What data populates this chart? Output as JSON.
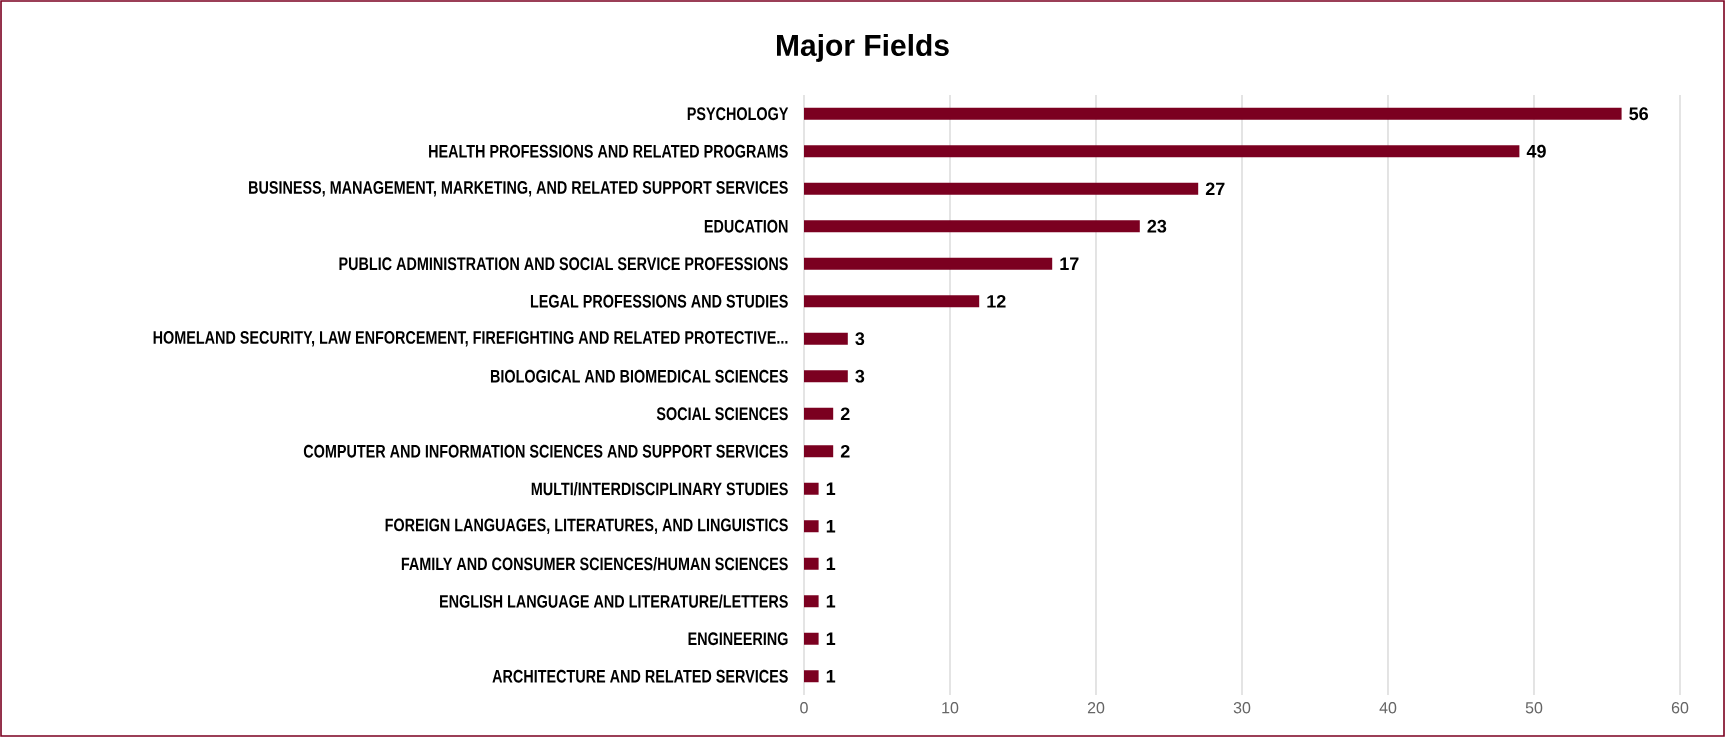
{
  "chart_data": {
    "type": "bar",
    "orientation": "horizontal",
    "title": "Major Fields",
    "categories": [
      "PSYCHOLOGY",
      "HEALTH PROFESSIONS AND RELATED PROGRAMS",
      "BUSINESS, MANAGEMENT, MARKETING, AND RELATED SUPPORT SERVICES",
      "EDUCATION",
      "PUBLIC ADMINISTRATION AND SOCIAL SERVICE PROFESSIONS",
      "LEGAL PROFESSIONS AND STUDIES",
      "HOMELAND SECURITY, LAW ENFORCEMENT, FIREFIGHTING AND RELATED PROTECTIVE...",
      "BIOLOGICAL AND BIOMEDICAL SCIENCES",
      "SOCIAL SCIENCES",
      "COMPUTER AND INFORMATION SCIENCES AND SUPPORT SERVICES",
      "MULTI/INTERDISCIPLINARY STUDIES",
      "FOREIGN LANGUAGES, LITERATURES, AND LINGUISTICS",
      "FAMILY AND CONSUMER SCIENCES/HUMAN SCIENCES",
      "ENGLISH LANGUAGE AND LITERATURE/LETTERS",
      "ENGINEERING",
      "ARCHITECTURE AND RELATED SERVICES"
    ],
    "values": [
      56,
      49,
      27,
      23,
      17,
      12,
      3,
      3,
      2,
      2,
      1,
      1,
      1,
      1,
      1,
      1
    ],
    "color": "#7b0020",
    "xlim": [
      0,
      60
    ],
    "xticks": [
      0,
      10,
      20,
      30,
      40,
      50,
      60
    ],
    "grid": "x",
    "data_labels": true
  }
}
